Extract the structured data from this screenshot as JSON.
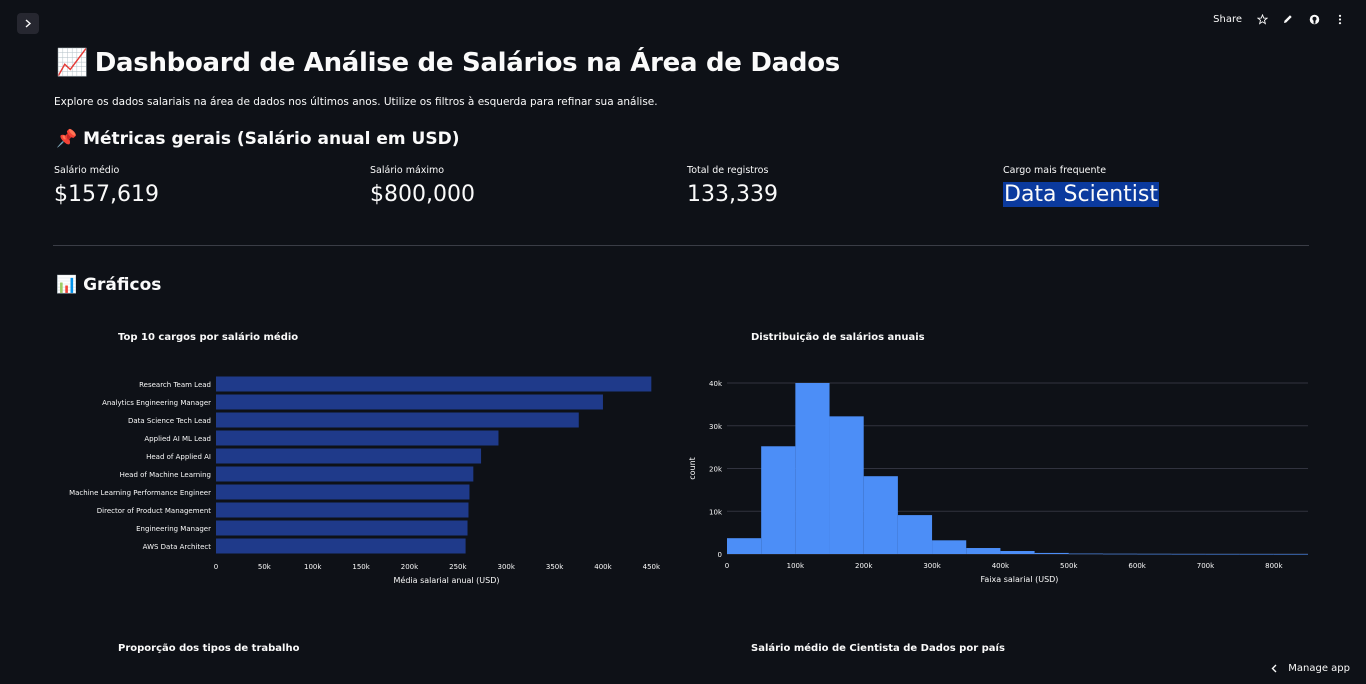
{
  "header": {
    "share_label": "Share",
    "icons": [
      "chevron-right-icon",
      "star-icon",
      "pencil-icon",
      "github-icon",
      "kebab-menu-icon"
    ]
  },
  "page": {
    "title_emoji": "📈",
    "title": "Dashboard de Análise de Salários na Área de Dados",
    "subtitle": "Explore os dados salariais na área de dados nos últimos anos. Utilize os filtros à esquerda para refinar sua análise."
  },
  "metrics_section": {
    "emoji": "📌",
    "title": "Métricas gerais (Salário anual em USD)",
    "items": [
      {
        "label": "Salário médio",
        "value": "$157,619"
      },
      {
        "label": "Salário máximo",
        "value": "$800,000"
      },
      {
        "label": "Total de registros",
        "value": "133,339"
      },
      {
        "label": "Cargo mais frequente",
        "value": "Data Scientist"
      }
    ]
  },
  "charts_section": {
    "emoji": "📊",
    "title": "Gráficos"
  },
  "chart_data": [
    {
      "type": "bar",
      "orientation": "horizontal",
      "title": "Top 10 cargos por salário médio",
      "xlabel": "Média salarial anual (USD)",
      "ylabel": "",
      "categories": [
        "Research Team Lead",
        "Analytics Engineering Manager",
        "Data Science Tech Lead",
        "Applied AI ML Lead",
        "Head of Applied AI",
        "Head of Machine Learning",
        "Machine Learning Performance Engineer",
        "Director of Product Management",
        "Engineering Manager",
        "AWS Data Architect"
      ],
      "values": [
        450000,
        400000,
        375000,
        292000,
        274000,
        266000,
        262000,
        261000,
        260000,
        258000
      ],
      "xlim": [
        0,
        460000
      ],
      "xticks": [
        0,
        50000,
        100000,
        150000,
        200000,
        250000,
        300000,
        350000,
        400000,
        450000
      ],
      "xtick_labels": [
        "0",
        "50k",
        "100k",
        "150k",
        "200k",
        "250k",
        "300k",
        "350k",
        "400k",
        "450k"
      ],
      "color": "#1f3a8a"
    },
    {
      "type": "bar",
      "subtype": "histogram",
      "title": "Distribuição de salários anuais",
      "xlabel": "Faixa salarial (USD)",
      "ylabel": "count",
      "bin_width": 50000,
      "bin_starts": [
        0,
        50000,
        100000,
        150000,
        200000,
        250000,
        300000,
        350000,
        400000,
        450000,
        500000,
        550000,
        600000,
        650000,
        700000,
        750000,
        800000
      ],
      "values": [
        3700,
        25200,
        40000,
        32200,
        18200,
        9100,
        3200,
        1400,
        700,
        250,
        100,
        60,
        40,
        20,
        15,
        10,
        5
      ],
      "xlim": [
        0,
        850000
      ],
      "ylim": [
        0,
        40000
      ],
      "xticks": [
        0,
        100000,
        200000,
        300000,
        400000,
        500000,
        600000,
        700000,
        800000
      ],
      "xtick_labels": [
        "0",
        "100k",
        "200k",
        "300k",
        "400k",
        "500k",
        "600k",
        "700k",
        "800k"
      ],
      "yticks": [
        0,
        10000,
        20000,
        30000,
        40000
      ],
      "ytick_labels": [
        "0",
        "10k",
        "20k",
        "30k",
        "40k"
      ],
      "color": "#4c8ef7"
    }
  ],
  "more_charts": {
    "pie_title": "Proporção dos tipos de trabalho",
    "map_title": "Salário médio de Cientista de Dados por país"
  },
  "footer": {
    "manage_label": "Manage app"
  }
}
